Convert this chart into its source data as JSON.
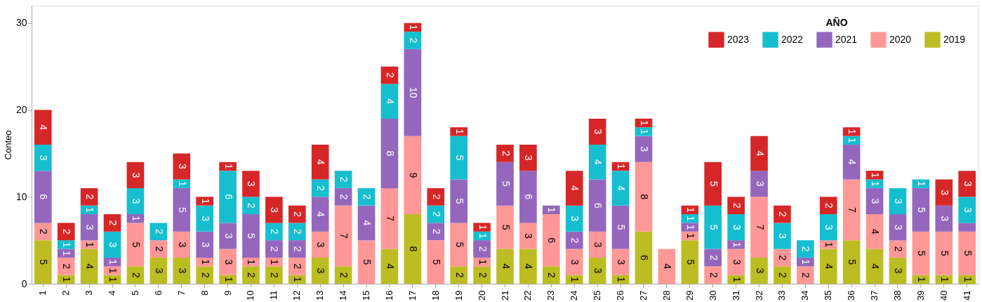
{
  "chart_data": {
    "type": "bar",
    "stacked": true,
    "ylabel": "Conteo",
    "legend_title": "AÑO",
    "legend": "top right",
    "grid": false,
    "categories": [
      "1",
      "2",
      "3",
      "4",
      "5",
      "6",
      "7",
      "8",
      "9",
      "10",
      "11",
      "12",
      "13",
      "14",
      "15",
      "16",
      "17",
      "18",
      "19",
      "20",
      "21",
      "22",
      "23",
      "24",
      "25",
      "26",
      "27",
      "28",
      "29",
      "30",
      "31",
      "32",
      "33",
      "34",
      "35",
      "36",
      "37",
      "38",
      "39",
      "40",
      "41"
    ],
    "ylim": [
      0,
      32
    ],
    "yticks": [
      0,
      10,
      20,
      30
    ],
    "series": [
      {
        "name": "2019",
        "color": "#bcbd22",
        "values": [
          5,
          1,
          4,
          1,
          2,
          3,
          3,
          2,
          1,
          2,
          2,
          1,
          3,
          2,
          null,
          4,
          8,
          null,
          2,
          2,
          4,
          4,
          2,
          1,
          3,
          1,
          6,
          null,
          5,
          null,
          1,
          3,
          2,
          null,
          4,
          5,
          4,
          3,
          1,
          1,
          1
        ],
        "value_labels": [
          "5",
          "1",
          "4",
          "1",
          "2",
          "3",
          "3",
          "2",
          "1",
          "2",
          "2",
          "1",
          "3",
          "2",
          null,
          "4",
          "8",
          null,
          "2",
          "2",
          "4",
          "4",
          "2",
          "1",
          "3",
          "1",
          "6",
          null,
          "5",
          null,
          "1",
          "3",
          "2",
          null,
          "4",
          "5",
          "4",
          "3",
          "1",
          "1",
          "1"
        ]
      },
      {
        "name": "2020",
        "color": "#ff9896",
        "values": [
          2,
          2,
          1,
          1,
          5,
          2,
          3,
          1,
          3,
          1,
          1,
          2,
          3,
          7,
          5,
          7,
          9,
          5,
          5,
          1,
          5,
          3,
          6,
          3,
          3,
          3,
          8,
          4,
          1,
          2,
          3,
          7,
          2,
          2,
          1,
          7,
          4,
          2,
          5,
          5,
          5
        ],
        "value_labels": [
          "2",
          "2",
          "1",
          "1",
          "5",
          "2",
          "3",
          "1",
          "3",
          "1",
          "1",
          "2",
          "3",
          "7",
          "5",
          "7",
          "9",
          "5",
          "5",
          "1",
          "5",
          "3",
          "6",
          "3",
          "3",
          "3",
          "8",
          "4",
          "1",
          "2",
          "3",
          "7",
          "2",
          "2",
          "1",
          "7",
          "4",
          "2",
          "5",
          "5",
          "5"
        ]
      },
      {
        "name": "2021",
        "color": "#9467bd",
        "values": [
          6,
          1,
          3,
          1,
          1,
          null,
          5,
          3,
          3,
          5,
          2,
          2,
          4,
          2,
          4,
          8,
          10,
          2,
          5,
          2,
          5,
          6,
          1,
          2,
          6,
          5,
          3,
          null,
          1,
          2,
          1,
          3,
          null,
          1,
          null,
          4,
          3,
          3,
          5,
          3,
          1
        ],
        "value_labels": [
          "6",
          "1",
          "3",
          "1",
          "1",
          null,
          "5",
          "3",
          "3",
          "5",
          "2",
          "2",
          "4",
          "2",
          "4",
          "8",
          "10",
          "2",
          "5",
          "2",
          "5",
          "6",
          "1",
          "2",
          "6",
          "5",
          "3",
          null,
          "1",
          "2",
          "1",
          "3",
          null,
          "1",
          null,
          "4",
          "3",
          "3",
          "5",
          "3",
          null
        ]
      },
      {
        "name": "2022",
        "color": "#17becf",
        "values": [
          3,
          1,
          1,
          3,
          3,
          2,
          1,
          3,
          6,
          2,
          2,
          2,
          2,
          2,
          2,
          4,
          2,
          2,
          5,
          1,
          null,
          null,
          null,
          3,
          4,
          4,
          1,
          null,
          1,
          5,
          3,
          null,
          3,
          2,
          3,
          1,
          1,
          3,
          1,
          null,
          3
        ],
        "value_labels": [
          "3",
          "1",
          "1",
          "3",
          "3",
          "2",
          "1",
          "3",
          "6",
          "2",
          "2",
          "2",
          "2",
          "2",
          "2",
          "4",
          "2",
          "2",
          "5",
          "1",
          null,
          null,
          null,
          "3",
          "4",
          "4",
          "1",
          null,
          "1",
          "5",
          "3",
          null,
          "3",
          "2",
          "3",
          "1",
          "1",
          "3",
          "1",
          null,
          "3"
        ]
      },
      {
        "name": "2023",
        "color": "#d62728",
        "values": [
          4,
          2,
          2,
          2,
          3,
          null,
          3,
          1,
          1,
          3,
          3,
          2,
          4,
          null,
          null,
          2,
          1,
          2,
          1,
          1,
          2,
          3,
          null,
          4,
          3,
          1,
          1,
          null,
          1,
          5,
          2,
          4,
          2,
          null,
          2,
          1,
          1,
          null,
          null,
          3,
          3
        ],
        "value_labels": [
          "4",
          "2",
          "2",
          "2",
          "3",
          null,
          "3",
          "1",
          "1",
          "3",
          "3",
          "2",
          "4",
          null,
          null,
          "2",
          "1",
          "2",
          "1",
          "1",
          "2",
          "3",
          null,
          "4",
          "3",
          "1",
          "1",
          null,
          "1",
          "5",
          "2",
          "4",
          "2",
          null,
          "2",
          "1",
          "1",
          null,
          null,
          "3",
          "3"
        ]
      }
    ]
  }
}
